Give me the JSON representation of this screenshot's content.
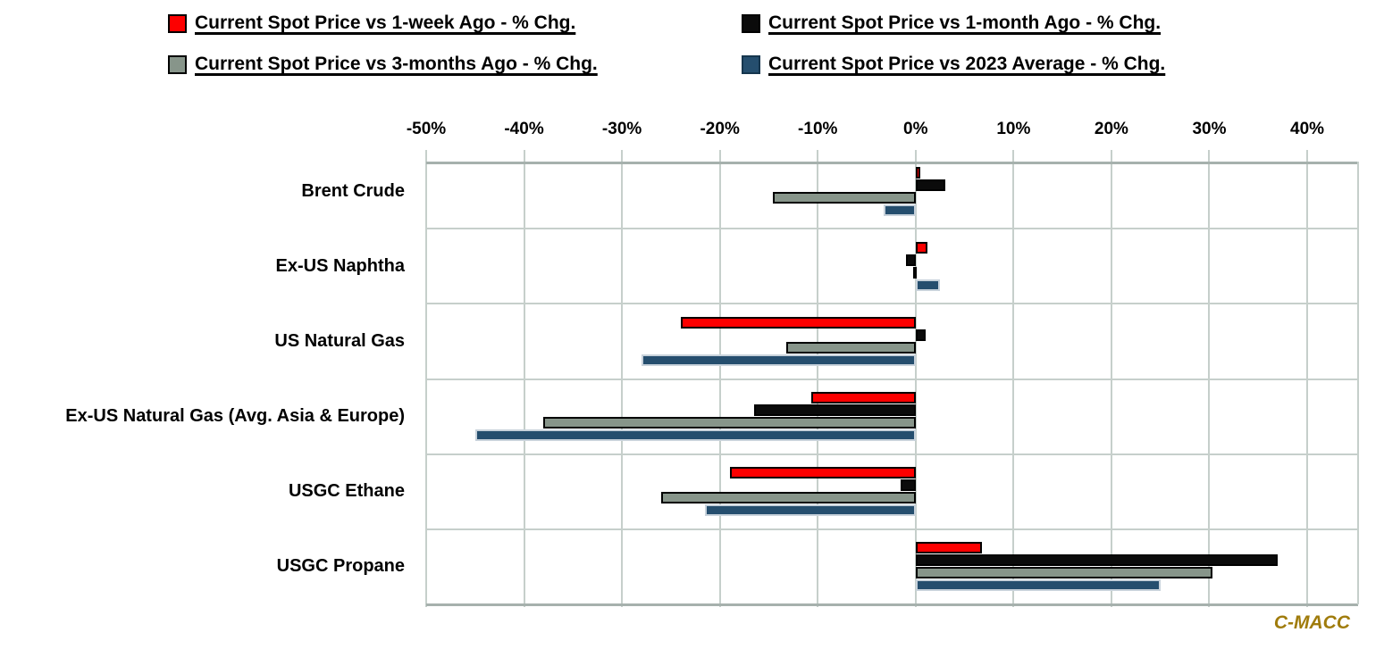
{
  "chart_data": {
    "type": "bar",
    "orientation": "horizontal",
    "title": "",
    "xlabel": "",
    "ylabel": "",
    "grid": true,
    "legend_position": "top",
    "xlim": [
      -50,
      45.2
    ],
    "x_ticks": [
      -50,
      -40,
      -30,
      -20,
      -10,
      0,
      10,
      20,
      30,
      40
    ],
    "x_tick_labels": [
      "-50%",
      "-40%",
      "-30%",
      "-20%",
      "-10%",
      "0%",
      "10%",
      "20%",
      "30%",
      "40%"
    ],
    "categories": [
      "Brent Crude",
      "Ex-US Naphtha",
      "US Natural Gas",
      "Ex-US Natural Gas (Avg. Asia & Europe)",
      "USGC Ethane",
      "USGC Propane"
    ],
    "series": [
      {
        "name": "Current Spot Price vs 1-week Ago - % Chg.",
        "color": "#fd0000",
        "border_color": "#000000",
        "values": [
          0.5,
          1.2,
          -24,
          -10.7,
          -19,
          6.8
        ]
      },
      {
        "name": "Current Spot Price vs 1-month Ago - % Chg.",
        "color": "#0b0b0b",
        "border_color": "#000000",
        "values": [
          3,
          -1,
          1,
          -16.5,
          -1.5,
          37
        ]
      },
      {
        "name": "Current Spot Price vs 3-months Ago - % Chg.",
        "color": "#87958a",
        "border_color": "#000000",
        "values": [
          -14.6,
          -0.2,
          -13.2,
          -38,
          -26,
          30.3
        ]
      },
      {
        "name": "Current Spot Price vs 2023 Average - % Chg.",
        "color": "#254e6e",
        "border_color": "#c8d2db",
        "values": [
          -3.3,
          2.5,
          -28,
          -45,
          -21.5,
          25
        ]
      }
    ]
  },
  "branding": {
    "label": "C-MACC",
    "color": "#a07c0c"
  }
}
